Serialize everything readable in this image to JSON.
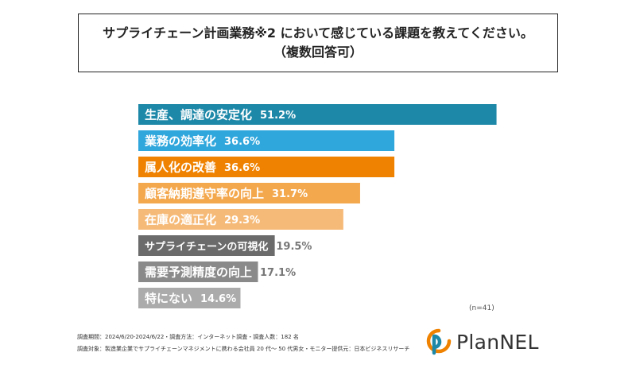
{
  "title": {
    "line1": "サプライチェーン計画業務※2 において感じている課題を教えてください。",
    "line2": "（複数回答可）"
  },
  "chart_data": {
    "type": "bar",
    "orientation": "horizontal",
    "categories": [
      "生産、調達の安定化",
      "業務の効率化",
      "属人化の改善",
      "顧客納期遵守率の向上",
      "在庫の適正化",
      "サプライチェーンの可視化",
      "需要予測精度の向上",
      "特にない"
    ],
    "values": [
      51.2,
      36.6,
      36.6,
      31.7,
      29.3,
      19.5,
      17.1,
      14.6
    ],
    "value_labels": [
      "51.2%",
      "36.6%",
      "36.6%",
      "31.7%",
      "29.3%",
      "19.5%",
      "17.1%",
      "14.6%"
    ],
    "colors": [
      "#1e88a8",
      "#2fa6dc",
      "#ef8200",
      "#f4a84e",
      "#f6ba78",
      "#6b6b6b",
      "#8a8a8a",
      "#ababab"
    ],
    "xlim": [
      0,
      100
    ],
    "grid": false,
    "legend": "none"
  },
  "note": "(n=41)",
  "footer": {
    "line1": "調査期間：2024/6/20-2024/6/22・調査方法：インターネット調査・調査人数：182 名",
    "line2": "調査対象：製造業企業でサプライチェーンマネジメントに携わる会社員 20 代～ 50 代男女・モニター提供元：日本ビジネスリサーチ"
  },
  "logo": {
    "text": "PlanNEL",
    "icon": "plannel-logo-icon",
    "colors": [
      "#ef8200",
      "#1e88a8"
    ]
  }
}
